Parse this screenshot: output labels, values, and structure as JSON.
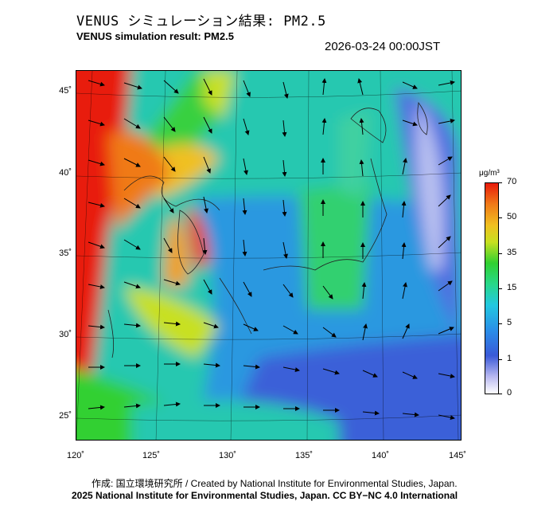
{
  "header": {
    "title_jp": "VENUS シミュレーション結果: PM2.5",
    "title_en": "VENUS simulation result: PM2.5",
    "timestamp": "2026-03-24 00:00JST"
  },
  "map": {
    "lat_labels": [
      "45˚",
      "40˚",
      "35˚",
      "30˚",
      "25˚"
    ],
    "lon_labels": [
      "120˚",
      "125˚",
      "130˚",
      "135˚",
      "140˚",
      "145˚"
    ],
    "lat_range": [
      23,
      46
    ],
    "lon_range": [
      120,
      145
    ]
  },
  "colorbar": {
    "unit": "μg/m³",
    "ticks": [
      "70",
      "50",
      "35",
      "15",
      "5",
      "1",
      "0"
    ],
    "colors": {
      "max": "#e81a0a",
      "high": "#f07a18",
      "mid_high": "#f0c020",
      "mid": "#30d030",
      "low_mid": "#22c8e0",
      "low": "#2a8ee8",
      "very_low": "#3a5ad8",
      "min": "#ffffff"
    }
  },
  "credits": {
    "jp": "作成: 国立環境研究所 / Created by National Institute for Environmental Studies, Japan.",
    "en": "2025 National Institute for Environmental Studies, Japan. CC BY−NC 4.0 International"
  }
}
